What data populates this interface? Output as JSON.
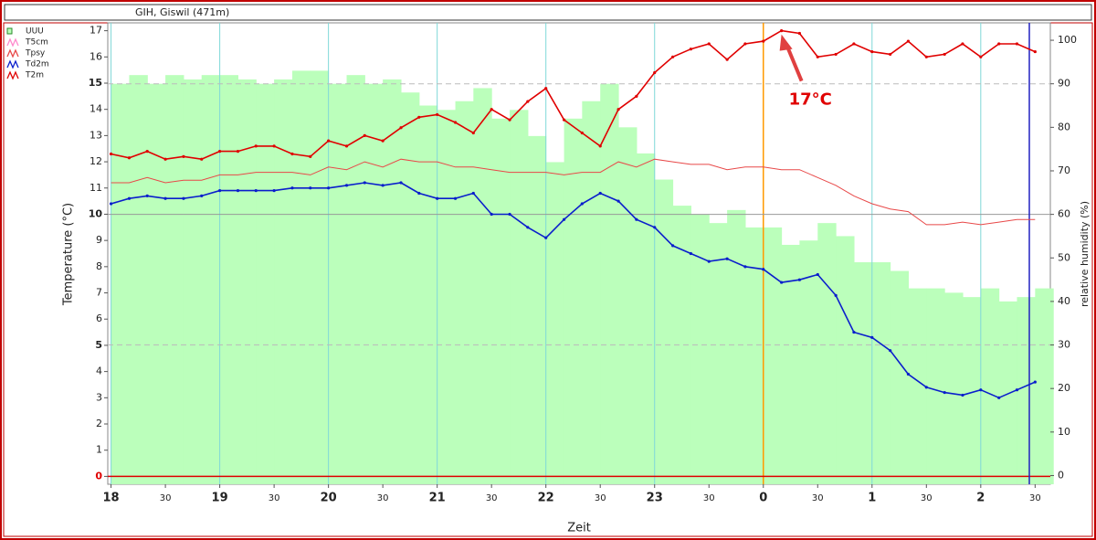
{
  "chart_data": {
    "type": "line",
    "title": "GIH, Giswil (471m)",
    "xlabel": "Zeit",
    "ylabel": "Temperature (°C)",
    "y2label": "relative humidity (%)",
    "annotation": "17°C",
    "grid": true,
    "legend": "top-left",
    "xlim": [
      17.97,
      26.64
    ],
    "ylim": [
      -0.3,
      17.3
    ],
    "y2lim": [
      -2,
      104
    ],
    "xticks": [
      18,
      {
        "value": 18.5,
        "label": "30"
      },
      19,
      {
        "value": 19.5,
        "label": "30"
      },
      20,
      {
        "value": 20.5,
        "label": "30"
      },
      21,
      {
        "value": 21.5,
        "label": "30"
      },
      22,
      {
        "value": 22.5,
        "label": "30"
      },
      23,
      {
        "value": 23.5,
        "label": "30"
      },
      {
        "value": 24,
        "label": "0"
      },
      {
        "value": 24.5,
        "label": "30"
      },
      {
        "value": 25,
        "label": "1"
      },
      {
        "value": 25.5,
        "label": "30"
      },
      {
        "value": 26,
        "label": "2"
      },
      {
        "value": 26.5,
        "label": "30"
      }
    ],
    "yticks": [
      0,
      1,
      2,
      3,
      4,
      5,
      6,
      7,
      8,
      9,
      10,
      11,
      12,
      13,
      14,
      15,
      16,
      17
    ],
    "y2ticks": [
      0,
      10,
      20,
      30,
      40,
      50,
      60,
      70,
      80,
      90,
      100
    ],
    "x": [
      18,
      18.167,
      18.333,
      18.5,
      18.667,
      18.833,
      19,
      19.167,
      19.333,
      19.5,
      19.667,
      19.833,
      20,
      20.167,
      20.333,
      20.5,
      20.667,
      20.833,
      21,
      21.167,
      21.333,
      21.5,
      21.667,
      21.833,
      22,
      22.167,
      22.333,
      22.5,
      22.667,
      22.833,
      23,
      23.167,
      23.333,
      23.5,
      23.667,
      23.833,
      24,
      24.167,
      24.333,
      24.5,
      24.667,
      24.833,
      25,
      25.167,
      25.333,
      25.5,
      25.667,
      25.833,
      26,
      26.167,
      26.333,
      26.5
    ],
    "series": [
      {
        "name": "UUU",
        "type": "bar",
        "axis": "y2",
        "color": "#bbffbb",
        "values": [
          90,
          92,
          90,
          92,
          91,
          92,
          92,
          91,
          90,
          91,
          93,
          93,
          90,
          92,
          90,
          91,
          88,
          85,
          84,
          86,
          89,
          82,
          84,
          78,
          72,
          82,
          86,
          90,
          80,
          74,
          68,
          62,
          60,
          58,
          61,
          57,
          57,
          53,
          54,
          58,
          55,
          49,
          49,
          47,
          43,
          43,
          42,
          41,
          43,
          40,
          41,
          43
        ]
      },
      {
        "name": "T5cm",
        "type": "line",
        "color": "#ff88cc",
        "values": [
          null,
          null,
          null,
          null,
          null,
          null,
          null,
          null,
          null,
          null,
          null,
          null,
          null,
          null,
          null,
          null,
          null,
          null,
          null,
          null,
          null,
          null,
          null,
          null,
          null,
          null,
          null,
          null,
          null,
          null,
          null,
          null,
          null,
          null,
          null,
          null,
          null,
          null,
          null,
          null,
          null,
          null,
          null,
          null,
          null,
          null,
          null,
          null,
          null,
          null,
          null,
          null
        ]
      },
      {
        "name": "Tpsy",
        "type": "line",
        "color": "#e84848",
        "values": [
          11.2,
          11.2,
          11.4,
          11.2,
          11.3,
          11.3,
          11.5,
          11.5,
          11.6,
          11.6,
          11.6,
          11.5,
          11.8,
          11.7,
          12.0,
          11.8,
          12.1,
          12.0,
          12.0,
          11.8,
          11.8,
          11.7,
          11.6,
          11.6,
          11.6,
          11.5,
          11.6,
          11.6,
          12.0,
          11.8,
          12.1,
          12.0,
          11.9,
          11.9,
          11.7,
          11.8,
          11.8,
          11.7,
          11.7,
          11.4,
          11.1,
          10.7,
          10.4,
          10.2,
          10.1,
          9.6,
          9.6,
          9.7,
          9.6,
          9.7,
          9.8,
          9.8
        ]
      },
      {
        "name": "Td2m",
        "type": "line",
        "color": "#0a1ecc",
        "values": [
          10.4,
          10.6,
          10.7,
          10.6,
          10.6,
          10.7,
          10.9,
          10.9,
          10.9,
          10.9,
          11.0,
          11.0,
          11.0,
          11.1,
          11.2,
          11.1,
          11.2,
          10.8,
          10.6,
          10.6,
          10.8,
          10.0,
          10.0,
          9.5,
          9.1,
          9.8,
          10.4,
          10.8,
          10.5,
          9.8,
          9.5,
          8.8,
          8.5,
          8.2,
          8.3,
          8.0,
          7.9,
          7.4,
          7.5,
          7.7,
          6.9,
          5.5,
          5.3,
          4.8,
          3.9,
          3.4,
          3.2,
          3.1,
          3.3,
          3.0,
          3.3,
          3.6
        ]
      },
      {
        "name": "T2m",
        "type": "line",
        "color": "#e00000",
        "values": [
          12.3,
          12.15,
          12.4,
          12.1,
          12.2,
          12.1,
          12.4,
          12.4,
          12.6,
          12.6,
          12.3,
          12.2,
          12.8,
          12.6,
          13.0,
          12.8,
          13.3,
          13.7,
          13.8,
          13.5,
          13.1,
          14.0,
          13.6,
          14.3,
          14.8,
          13.6,
          13.1,
          12.6,
          14.0,
          14.5,
          15.4,
          16.0,
          16.3,
          16.5,
          15.9,
          16.5,
          16.6,
          17.0,
          16.9,
          16.0,
          16.1,
          16.5,
          16.2,
          16.1,
          16.6,
          16.0,
          16.1,
          16.5,
          16.0,
          16.5,
          16.5,
          16.2
        ]
      }
    ]
  }
}
